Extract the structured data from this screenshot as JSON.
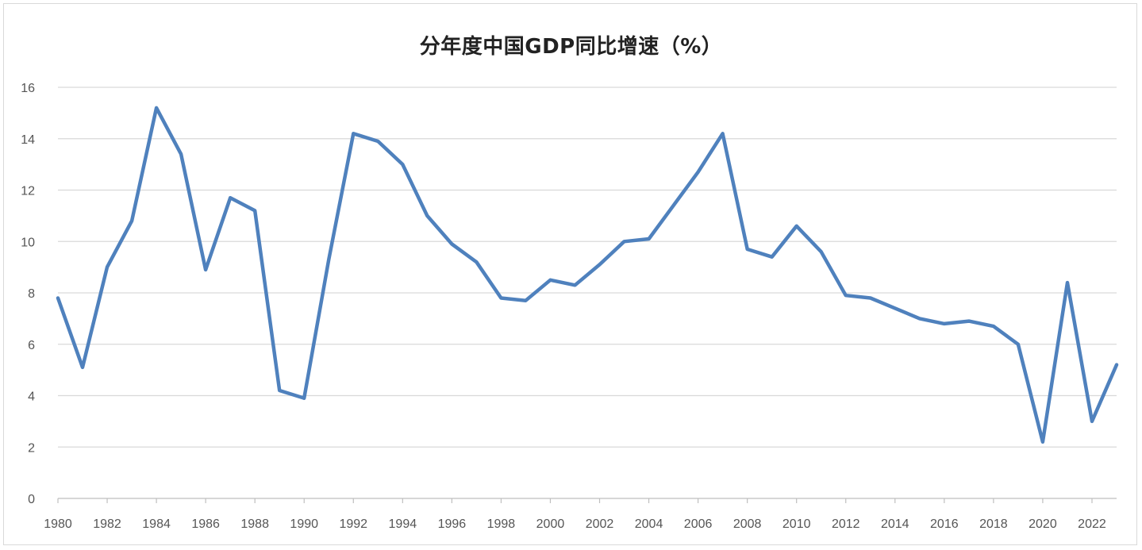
{
  "chart_data": {
    "type": "line",
    "title": "分年度中国GDP同比增速（%）",
    "xlabel": "",
    "ylabel": "",
    "ylim": [
      0,
      16
    ],
    "yticks": [
      0,
      2,
      4,
      6,
      8,
      10,
      12,
      14,
      16
    ],
    "xticks": [
      1980,
      1982,
      1984,
      1986,
      1988,
      1990,
      1992,
      1994,
      1996,
      1998,
      2000,
      2002,
      2004,
      2006,
      2008,
      2010,
      2012,
      2014,
      2016,
      2018,
      2020,
      2022
    ],
    "xlim": [
      1980,
      2023
    ],
    "grid": "horizontal",
    "line_color": "#4f81bd",
    "series": [
      {
        "x": [
          1980,
          1981,
          1982,
          1983,
          1984,
          1985,
          1986,
          1987,
          1988,
          1989,
          1990,
          1991,
          1992,
          1993,
          1994,
          1995,
          1996,
          1997,
          1998,
          1999,
          2000,
          2001,
          2002,
          2003,
          2004,
          2005,
          2006,
          2007,
          2008,
          2009,
          2010,
          2011,
          2012,
          2013,
          2014,
          2015,
          2016,
          2017,
          2018,
          2019,
          2020,
          2021,
          2022,
          2023
        ],
        "values": [
          7.8,
          5.1,
          9.0,
          10.8,
          15.2,
          13.4,
          8.9,
          11.7,
          11.2,
          4.2,
          3.9,
          9.3,
          14.2,
          13.9,
          13.0,
          11.0,
          9.9,
          9.2,
          7.8,
          7.7,
          8.5,
          8.3,
          9.1,
          10.0,
          10.1,
          11.4,
          12.7,
          14.2,
          9.7,
          9.4,
          10.6,
          9.6,
          7.9,
          7.8,
          7.4,
          7.0,
          6.8,
          6.9,
          6.7,
          6.0,
          2.2,
          8.4,
          3.0,
          5.2
        ]
      }
    ]
  }
}
